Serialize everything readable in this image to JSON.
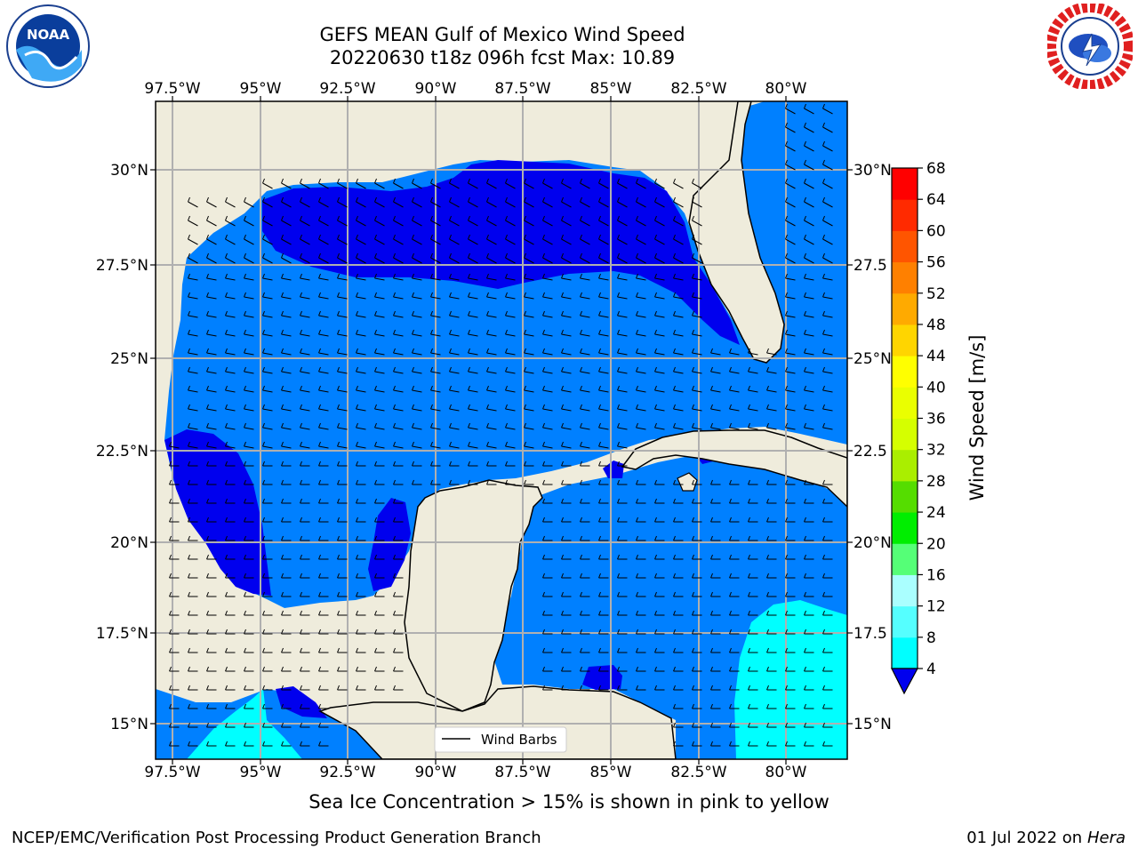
{
  "title": {
    "line1": "GEFS MEAN Gulf of Mexico Wind Speed",
    "line2": "20220630 t18z 096h fcst   Max: 10.89"
  },
  "logos": {
    "left": {
      "icon": "noaa-logo",
      "label": "NOAA"
    },
    "right": {
      "icon": "national-weather-service-logo"
    }
  },
  "map": {
    "top_lon_labels": [
      "97.5°W",
      "95°W",
      "92.5°W",
      "90°W",
      "87.5°W",
      "85°W",
      "82.5°W",
      "80°W"
    ],
    "bottom_lon_labels": [
      "97.5°W",
      "95°W",
      "92.5°W",
      "90°W",
      "87.5°W",
      "85°W",
      "82.5°W",
      "80°W"
    ],
    "left_lat_labels": [
      "30°N",
      "27.5°N",
      "25°N",
      "22.5°N",
      "20°N",
      "17.5°N",
      "15°N"
    ],
    "right_lat_labels": [
      "30°N",
      "27.5",
      "25°N",
      "22.5",
      "20°N",
      "17.5",
      "15°N"
    ],
    "legend_label": "Wind Barbs",
    "colors": {
      "land": "#efecdc",
      "ocean_4_8": "#0080ff",
      "ocean_0_4": "#0000ee",
      "ocean_8_12": "#00ffff",
      "grid": "#b0b0b0"
    }
  },
  "colorbar": {
    "label": "Wind Speed [m/s]",
    "ticks": [
      "68",
      "64",
      "60",
      "56",
      "52",
      "48",
      "44",
      "40",
      "36",
      "32",
      "28",
      "24",
      "20",
      "16",
      "12",
      "8",
      "4"
    ],
    "colors": [
      "#ff0000",
      "#ff2a00",
      "#ff5500",
      "#ff8000",
      "#ffaa00",
      "#ffd500",
      "#ffff00",
      "#eaff00",
      "#d5ff00",
      "#aaee00",
      "#55dd00",
      "#00ee00",
      "#55ff77",
      "#aaffff",
      "#55ffff",
      "#00ffff",
      "#0080ff"
    ],
    "under_color": "#0000ee"
  },
  "subcaption": "Sea Ice Concentration > 15% is shown in pink to yellow",
  "footer": {
    "left": "NCEP/EMC/Verification Post Processing Product Generation Branch",
    "date": "01 Jul 2022 on ",
    "host": "Hera"
  }
}
